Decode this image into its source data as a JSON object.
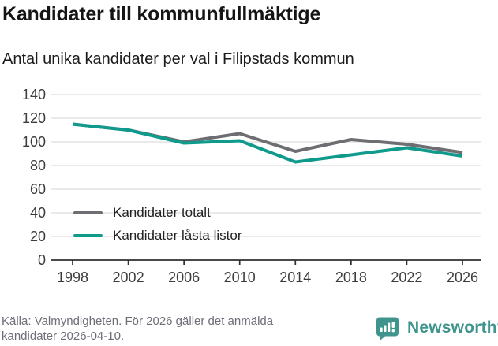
{
  "header": {
    "title": "Kandidater till kommunfullmäktige",
    "subtitle": "Antal unika kandidater per val i Filipstads kommun"
  },
  "chart_data": {
    "type": "line",
    "title": "Kandidater till kommunfullmäktige",
    "subtitle": "Antal unika kandidater per val i Filipstads kommun",
    "categories": [
      "1998",
      "2002",
      "2006",
      "2010",
      "2014",
      "2018",
      "2022",
      "2026"
    ],
    "series": [
      {
        "name": "Kandidater totalt",
        "color": "#6E6E72",
        "values": [
          115,
          110,
          100,
          107,
          92,
          102,
          98,
          91
        ]
      },
      {
        "name": "Kandidater låsta listor",
        "color": "#0F9A8C",
        "values": [
          115,
          110,
          99,
          101,
          83,
          89,
          95,
          88
        ]
      }
    ],
    "xlabel": "",
    "ylabel": "",
    "ylim": [
      0,
      140
    ],
    "y_ticks": [
      0,
      20,
      40,
      60,
      80,
      100,
      120,
      140
    ],
    "grid": true,
    "legend_position": "inside-lower-left",
    "gridline_color": "#e3e3e3",
    "axis_color": "#2f2f2f"
  },
  "footer": {
    "line1": "Källa: Valmyndigheten. För 2026 gäller det anmälda",
    "line2": "kandidater 2026-04-10."
  },
  "branding": {
    "name": "Newsworthy",
    "color": "#3F948D",
    "icon": "newsworthy-chart-bubble-logo"
  }
}
